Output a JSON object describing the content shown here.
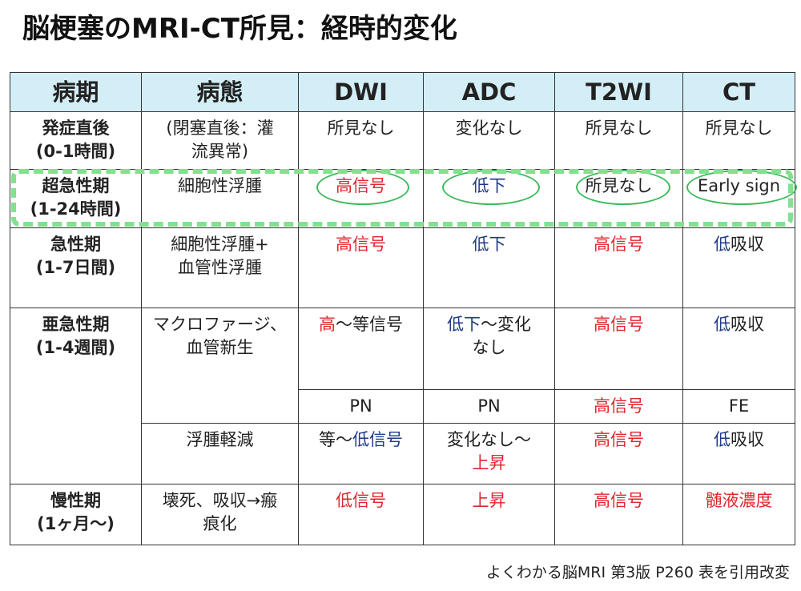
{
  "title": "脳梗塞のMRI-CT所見：経時的変化",
  "headers": {
    "period": "病期",
    "pathology": "病態",
    "dwi": "DWI",
    "adc": "ADC",
    "t2wi": "T2WI",
    "ct": "CT"
  },
  "rows": {
    "onset": {
      "stage_line1": "発症直後",
      "stage_line2": "(0-1時間)",
      "path_line1": "(閉塞直後：灌",
      "path_line2": "流異常)",
      "dwi": "所見なし",
      "adc": "変化なし",
      "t2wi": "所見なし",
      "ct": "所見なし"
    },
    "hyperacute": {
      "stage_line1": "超急性期",
      "stage_line2": "(1-24時間)",
      "path": "細胞性浮腫",
      "dwi": "高信号",
      "adc": "低下",
      "t2wi": "所見なし",
      "ct": "Early sign"
    },
    "acute": {
      "stage_line1": "急性期",
      "stage_line2": "(1-7日間)",
      "path_line1": "細胞性浮腫+",
      "path_line2": "血管性浮腫",
      "dwi": "高信号",
      "adc": "低下",
      "t2wi": "高信号",
      "ct_colored": "低",
      "ct_rest": "吸収"
    },
    "subacute": {
      "stage_line1": "亜急性期",
      "stage_line2": "(1-4週間)",
      "path_line1": "マクロファージ、",
      "path_line2": "血管新生",
      "dwi_colored": "高",
      "dwi_rest": "〜等信号",
      "adc_colored": "低下",
      "adc_rest_line1": "〜変化",
      "adc_rest_line2": "なし",
      "t2wi": "高信号",
      "ct_colored": "低",
      "ct_rest": "吸収"
    },
    "subacute_pn": {
      "dwi": "PN",
      "adc": "PN",
      "t2wi": "高信号",
      "ct": "FE"
    },
    "subacute_edema": {
      "path": "浮腫軽減",
      "dwi_plain": "等〜",
      "dwi_colored": "低信号",
      "adc_line1": "変化なし〜",
      "adc_line2": "上昇",
      "t2wi": "高信号",
      "ct_colored": "低",
      "ct_rest": "吸収"
    },
    "chronic": {
      "stage_line1": "慢性期",
      "stage_line2": "(1ヶ月〜)",
      "path_line1": "壊死、吸収→瘢",
      "path_line2": "痕化",
      "dwi": "低信号",
      "adc": "上昇",
      "t2wi": "高信号",
      "ct": "髄液濃度"
    }
  },
  "footer": "よくわかる脳MRI 第3版 P260 表を引用改変",
  "colors": {
    "header_bg": "#d4eef7",
    "red": "#e0262e",
    "blue": "#1f3a86",
    "highlight_green": "#84e090",
    "oval_green": "#3dbb5e"
  }
}
